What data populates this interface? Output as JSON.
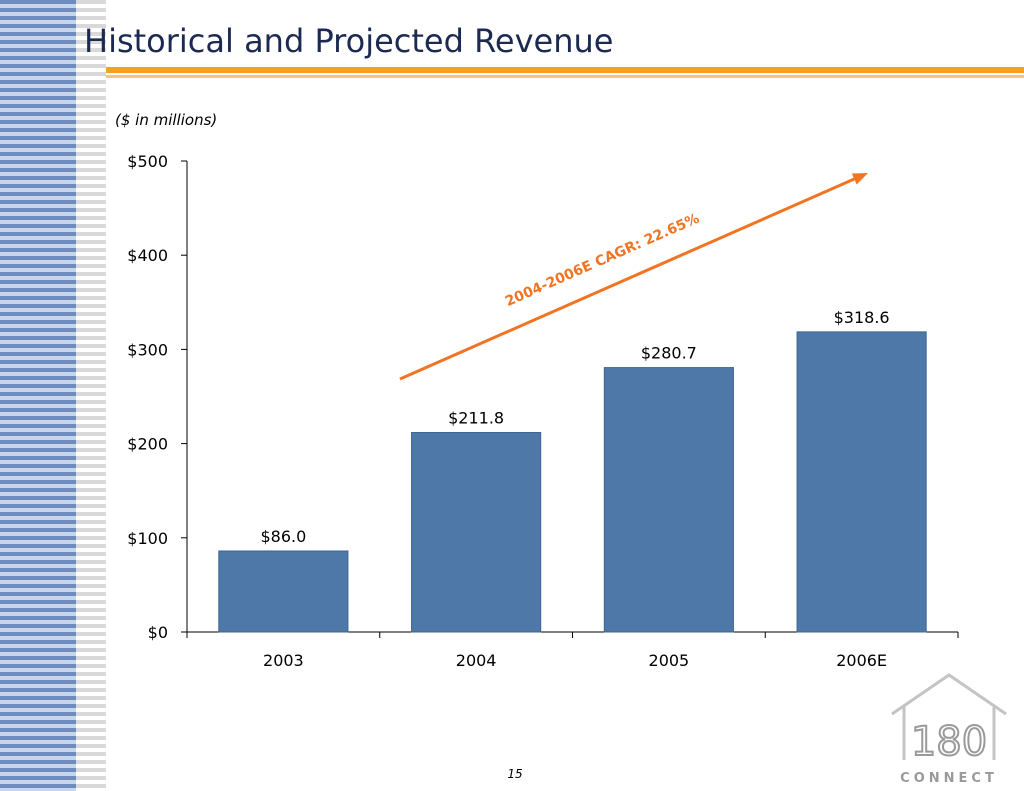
{
  "slide": {
    "title": "Historical and Projected Revenue",
    "units_note": "($ in millions)",
    "page_number": "15"
  },
  "logo": {
    "number": "180",
    "word": "CONNECT"
  },
  "colors": {
    "bar": "#4e78a8",
    "title": "#1c2a52",
    "accent": "#f5a01e",
    "arrow": "#f07422",
    "axis": "#000000"
  },
  "chart_data": {
    "type": "bar",
    "categories": [
      "2003",
      "2004",
      "2005",
      "2006E"
    ],
    "values": [
      86.0,
      211.8,
      280.7,
      318.6
    ],
    "value_labels": [
      "$86.0",
      "$211.8",
      "$280.7",
      "$318.6"
    ],
    "ylim": [
      0,
      500
    ],
    "yticks": [
      0,
      100,
      200,
      300,
      400,
      500
    ],
    "ytick_labels": [
      "$0",
      "$100",
      "$200",
      "$300",
      "$400",
      "$500"
    ],
    "annotation": "2004-2006E CAGR: 22.65%",
    "grid": false,
    "legend": "none"
  }
}
